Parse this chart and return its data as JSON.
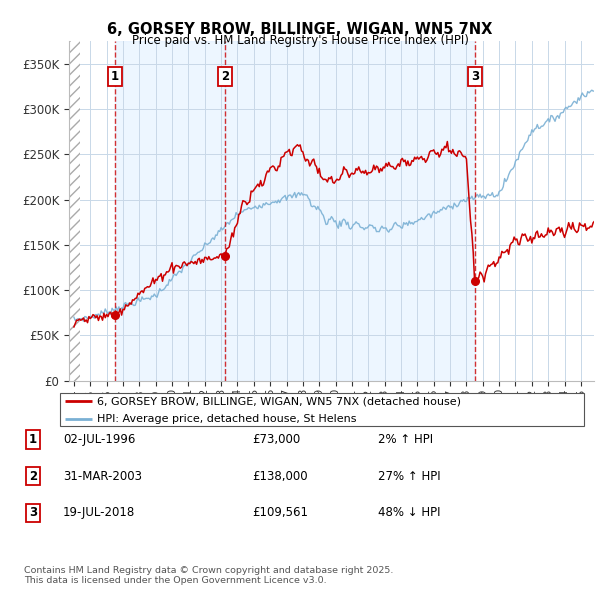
{
  "title": "6, GORSEY BROW, BILLINGE, WIGAN, WN5 7NX",
  "subtitle": "Price paid vs. HM Land Registry's House Price Index (HPI)",
  "ylim": [
    0,
    375000
  ],
  "yticks": [
    0,
    50000,
    100000,
    150000,
    200000,
    250000,
    300000,
    350000
  ],
  "ytick_labels": [
    "£0",
    "£50K",
    "£100K",
    "£150K",
    "£200K",
    "£250K",
    "£300K",
    "£350K"
  ],
  "hpi_color": "#7ab0d4",
  "price_color": "#cc0000",
  "xlim_start": 1993.7,
  "xlim_end": 2025.8,
  "hatch_end": 1994.4,
  "sale_dates_num": [
    1996.5,
    2003.25,
    2018.54
  ],
  "sale_prices": [
    73000,
    138000,
    109561
  ],
  "sale_labels": [
    "1",
    "2",
    "3"
  ],
  "legend_line1": "6, GORSEY BROW, BILLINGE, WIGAN, WN5 7NX (detached house)",
  "legend_line2": "HPI: Average price, detached house, St Helens",
  "table_rows": [
    [
      "1",
      "02-JUL-1996",
      "£73,000",
      "2% ↑ HPI"
    ],
    [
      "2",
      "31-MAR-2003",
      "£138,000",
      "27% ↑ HPI"
    ],
    [
      "3",
      "19-JUL-2018",
      "£109,561",
      "48% ↓ HPI"
    ]
  ],
  "footnote": "Contains HM Land Registry data © Crown copyright and database right 2025.\nThis data is licensed under the Open Government Licence v3.0.",
  "grid_color": "#c8d8e8",
  "bg_blue": "#ddeeff",
  "bg_hatch": "#d8d8d8"
}
